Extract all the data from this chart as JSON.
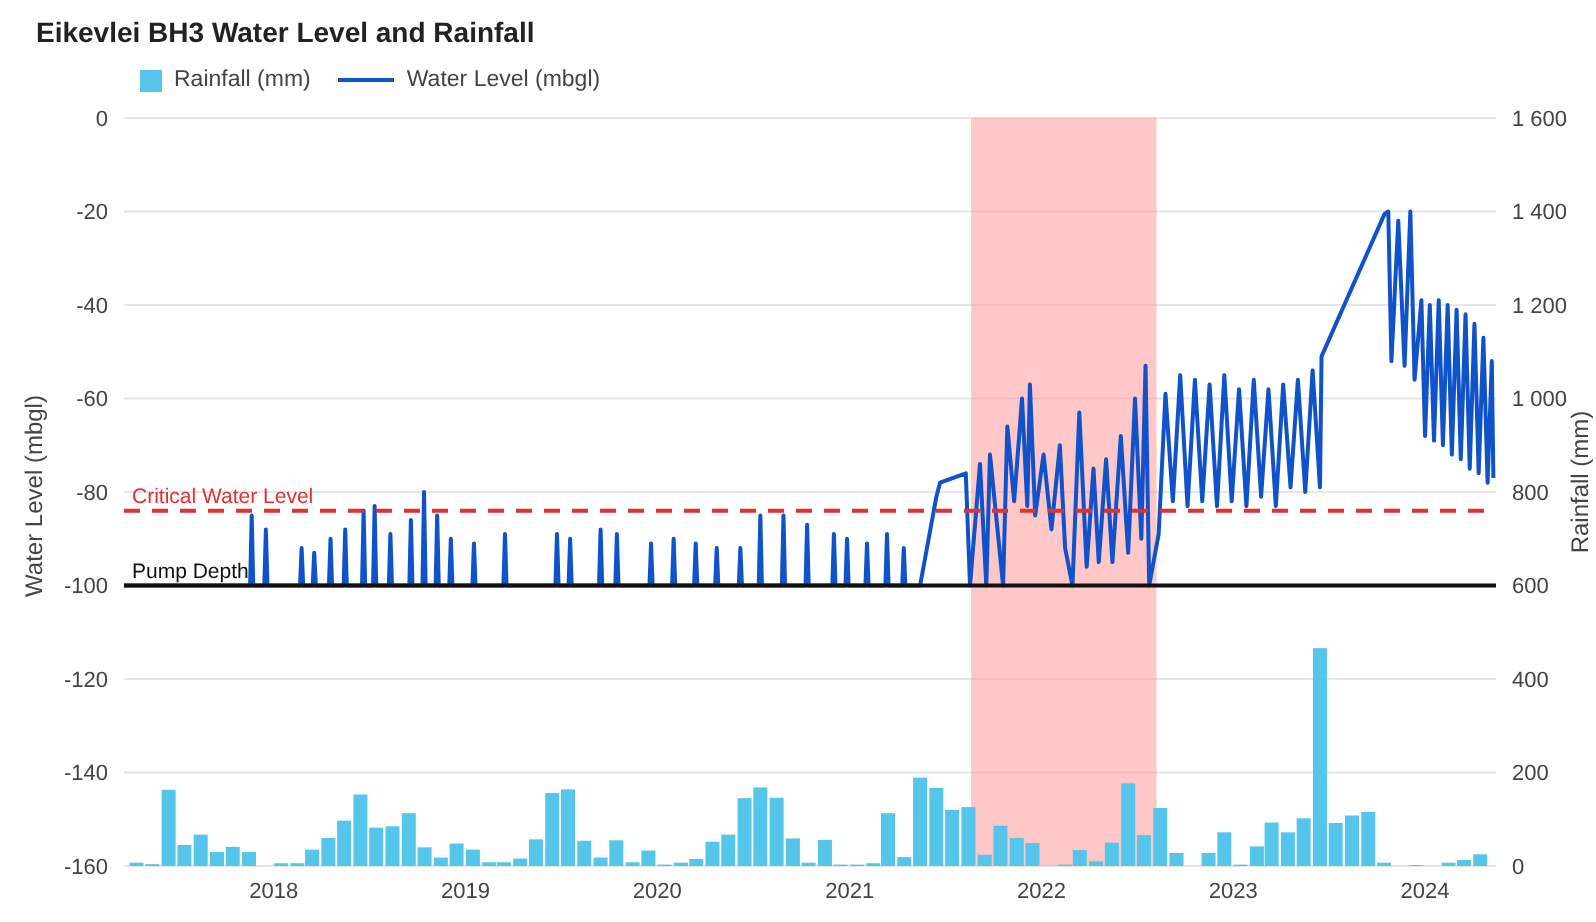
{
  "chart_data": {
    "type": "line",
    "title": "Eikevlei BH3 Water Level and Rainfall",
    "ylabel": "Water Level (mbgl)",
    "y2label": "Rainfall (mm)",
    "xlim": [
      "2017-03-22",
      "2024-05-15"
    ],
    "xticks": [
      "2018",
      "2019",
      "2020",
      "2021",
      "2022",
      "2023",
      "2024"
    ],
    "ylim": [
      -160,
      0
    ],
    "yticks": [
      -160,
      -140,
      -120,
      -100,
      -80,
      -60,
      -40,
      -20,
      0
    ],
    "y2lim": [
      0,
      1600
    ],
    "y2ticks": [
      0,
      200,
      400,
      600,
      800,
      {
        "value": 1000,
        "label": "1 000"
      },
      {
        "value": 1200,
        "label": "1 200"
      },
      {
        "value": 1400,
        "label": "1 400"
      },
      {
        "value": 1600,
        "label": "1 600"
      }
    ],
    "grid": "y",
    "legend": "top left",
    "series": [
      {
        "name": "Rainfall (mm)",
        "type": "bar",
        "axis": "y2",
        "color": "#56c5ec",
        "x": [
          "2017-04",
          "2017-05",
          "2017-06",
          "2017-07",
          "2017-08",
          "2017-09",
          "2017-10",
          "2017-11",
          "2017-12",
          "2018-01",
          "2018-02",
          "2018-03",
          "2018-04",
          "2018-05",
          "2018-06",
          "2018-07",
          "2018-08",
          "2018-09",
          "2018-10",
          "2018-11",
          "2018-12",
          "2019-01",
          "2019-02",
          "2019-03",
          "2019-04",
          "2019-05",
          "2019-06",
          "2019-07",
          "2019-08",
          "2019-09",
          "2019-10",
          "2019-11",
          "2019-12",
          "2020-01",
          "2020-02",
          "2020-03",
          "2020-04",
          "2020-05",
          "2020-06",
          "2020-07",
          "2020-08",
          "2020-09",
          "2020-10",
          "2020-11",
          "2020-12",
          "2021-01",
          "2021-02",
          "2021-03",
          "2021-04",
          "2021-05",
          "2021-06",
          "2021-07",
          "2021-08",
          "2021-09",
          "2021-10",
          "2021-11",
          "2021-12",
          "2022-01",
          "2022-02",
          "2022-03",
          "2022-04",
          "2022-05",
          "2022-06",
          "2022-07",
          "2022-08",
          "2022-09",
          "2022-10",
          "2022-11",
          "2022-12",
          "2023-01",
          "2023-02",
          "2023-03",
          "2023-04",
          "2023-05",
          "2023-06",
          "2023-07",
          "2023-08",
          "2023-09",
          "2023-10",
          "2023-11",
          "2023-12",
          "2024-01",
          "2024-02",
          "2024-03",
          "2024-04"
        ],
        "values": [
          7,
          4,
          163,
          45,
          67,
          30,
          41,
          30,
          0,
          6,
          6,
          35,
          60,
          97,
          153,
          82,
          85,
          113,
          40,
          18,
          48,
          35,
          8,
          8,
          16,
          57,
          156,
          164,
          54,
          18,
          55,
          8,
          33,
          3,
          7,
          15,
          52,
          67,
          145,
          168,
          146,
          59,
          7,
          56,
          3,
          3,
          6,
          113,
          19,
          189,
          167,
          120,
          126,
          24,
          86,
          60,
          49,
          0,
          3,
          34,
          10,
          50,
          177,
          66,
          124,
          28,
          0,
          28,
          72,
          3,
          42,
          93,
          72,
          102,
          466,
          92,
          108,
          116,
          7,
          0,
          2,
          0,
          7,
          13,
          25
        ]
      },
      {
        "name": "Water Level (mbgl)",
        "color": "#0f52c9",
        "x": [
          "2017-03-22",
          "2017-11-17",
          "2017-11-20",
          "2017-11-23",
          "2017-12-14",
          "2017-12-17",
          "2017-12-20",
          "2018-02-20",
          "2018-02-23",
          "2018-02-26",
          "2018-03-16",
          "2018-03-19",
          "2018-03-22",
          "2018-04-16",
          "2018-04-19",
          "2018-04-22",
          "2018-05-14",
          "2018-05-17",
          "2018-05-20",
          "2018-06-18",
          "2018-06-21",
          "2018-06-24",
          "2018-07-09",
          "2018-07-12",
          "2018-07-15",
          "2018-08-08",
          "2018-08-11",
          "2018-08-14",
          "2018-09-16",
          "2018-09-19",
          "2018-09-22",
          "2018-10-11",
          "2018-10-14",
          "2018-10-17",
          "2018-11-05",
          "2018-11-08",
          "2018-11-11",
          "2018-12-01",
          "2018-12-04",
          "2018-12-07",
          "2019-01-14",
          "2019-01-17",
          "2019-01-20",
          "2019-03-14",
          "2019-03-17",
          "2019-03-20",
          "2019-06-21",
          "2019-06-24",
          "2019-06-27",
          "2019-07-16",
          "2019-07-19",
          "2019-07-22",
          "2019-09-12",
          "2019-09-15",
          "2019-09-18",
          "2019-10-13",
          "2019-10-16",
          "2019-10-19",
          "2019-12-17",
          "2019-12-20",
          "2019-12-23",
          "2020-01-29",
          "2020-02-01",
          "2020-02-04",
          "2020-03-11",
          "2020-03-14",
          "2020-03-17",
          "2020-04-20",
          "2020-04-23",
          "2020-04-26",
          "2020-06-04",
          "2020-06-07",
          "2020-06-10",
          "2020-07-12",
          "2020-07-15",
          "2020-07-18",
          "2020-08-25",
          "2020-08-28",
          "2020-08-31",
          "2020-10-09",
          "2020-10-12",
          "2020-10-15",
          "2020-11-29",
          "2020-12-02",
          "2020-12-05",
          "2020-12-24",
          "2020-12-27",
          "2020-12-30",
          "2021-01-31",
          "2021-02-03",
          "2021-02-06",
          "2021-03-10",
          "2021-03-13",
          "2021-03-16",
          "2021-04-11",
          "2021-04-14",
          "2021-04-17",
          "2021-05-15",
          "2021-06-15",
          "2021-06-22",
          "2021-08-10",
          "2021-08-18",
          "2021-09-06",
          "2021-09-18",
          "2021-09-25",
          "2021-10-20",
          "2021-10-28",
          "2021-11-10",
          "2021-11-25",
          "2021-12-05",
          "2021-12-10",
          "2021-12-20",
          "2022-01-05",
          "2022-01-20",
          "2022-02-05",
          "2022-02-15",
          "2022-03-01",
          "2022-03-14",
          "2022-03-28",
          "2022-04-10",
          "2022-04-20",
          "2022-05-04",
          "2022-05-16",
          "2022-06-01",
          "2022-06-15",
          "2022-06-28",
          "2022-07-10",
          "2022-07-18",
          "2022-07-25",
          "2022-08-12",
          "2022-08-25",
          "2022-09-08",
          "2022-09-22",
          "2022-10-06",
          "2022-10-20",
          "2022-11-03",
          "2022-11-17",
          "2022-12-01",
          "2022-12-15",
          "2022-12-29",
          "2023-01-12",
          "2023-01-26",
          "2023-02-09",
          "2023-02-23",
          "2023-03-09",
          "2023-03-23",
          "2023-04-06",
          "2023-04-20",
          "2023-05-04",
          "2023-05-18",
          "2023-06-01",
          "2023-06-15",
          "2023-06-18",
          "2023-10-16",
          "2023-10-23",
          "2023-10-29",
          "2023-11-11",
          "2023-11-23",
          "2023-12-04",
          "2023-12-12",
          "2023-12-25",
          "2024-01-01",
          "2024-01-10",
          "2024-01-18",
          "2024-01-27",
          "2024-02-04",
          "2024-02-13",
          "2024-02-21",
          "2024-03-01",
          "2024-03-09",
          "2024-03-18",
          "2024-03-26",
          "2024-04-04",
          "2024-04-12",
          "2024-04-21",
          "2024-04-29",
          "2024-05-07",
          "2024-05-10"
        ],
        "values": [
          -100,
          -100,
          -85,
          -100,
          -100,
          -88,
          -100,
          -100,
          -92,
          -100,
          -100,
          -93,
          -100,
          -100,
          -90,
          -100,
          -100,
          -88,
          -100,
          -100,
          -84,
          -100,
          -100,
          -83,
          -100,
          -100,
          -89,
          -100,
          -100,
          -86,
          -100,
          -100,
          -80,
          -100,
          -100,
          -85,
          -100,
          -100,
          -90,
          -100,
          -100,
          -91,
          -100,
          -100,
          -89,
          -100,
          -100,
          -89,
          -100,
          -100,
          -90,
          -100,
          -100,
          -88,
          -100,
          -100,
          -89,
          -100,
          -100,
          -91,
          -100,
          -100,
          -90,
          -100,
          -100,
          -91,
          -100,
          -100,
          -92,
          -100,
          -100,
          -92,
          -100,
          -100,
          -85,
          -100,
          -100,
          -85,
          -100,
          -100,
          -87,
          -100,
          -100,
          -89,
          -100,
          -100,
          -90,
          -100,
          -100,
          -91,
          -100,
          -100,
          -89,
          -100,
          -100,
          -92,
          -100,
          -100,
          -81,
          -78,
          -76,
          -100,
          -74,
          -100,
          -72,
          -100,
          -66,
          -82,
          -60,
          -83,
          -57,
          -85,
          -72,
          -88,
          -70,
          -92,
          -100,
          -63,
          -96,
          -75,
          -95,
          -73,
          -95,
          -68,
          -93,
          -60,
          -90,
          -53,
          -100,
          -89,
          -59,
          -82,
          -55,
          -83,
          -56,
          -82,
          -57,
          -83,
          -55,
          -82,
          -58,
          -83,
          -56,
          -81,
          -58,
          -83,
          -57,
          -79,
          -56,
          -80,
          -54,
          -79,
          -51,
          -20.5,
          -20,
          -52,
          -22,
          -53,
          -20,
          -56,
          -39,
          -68,
          -40,
          -69,
          -39,
          -70,
          -40,
          -72,
          -41,
          -73,
          -42,
          -75,
          -44,
          -76,
          -47,
          -78,
          -52,
          -77
        ]
      }
    ],
    "ref_lines": [
      {
        "axis": "y",
        "value": -84,
        "label": "Critical Water Level",
        "color": "#e03131",
        "line_style": "dashed"
      },
      {
        "axis": "y",
        "value": -100,
        "label": "Pump Depth",
        "color": "#111111",
        "line_style": "solid"
      }
    ],
    "bands": [
      {
        "axis": "x",
        "from": "2021-08-20",
        "to": "2022-08-08",
        "color": "#ff8f8f"
      }
    ]
  }
}
